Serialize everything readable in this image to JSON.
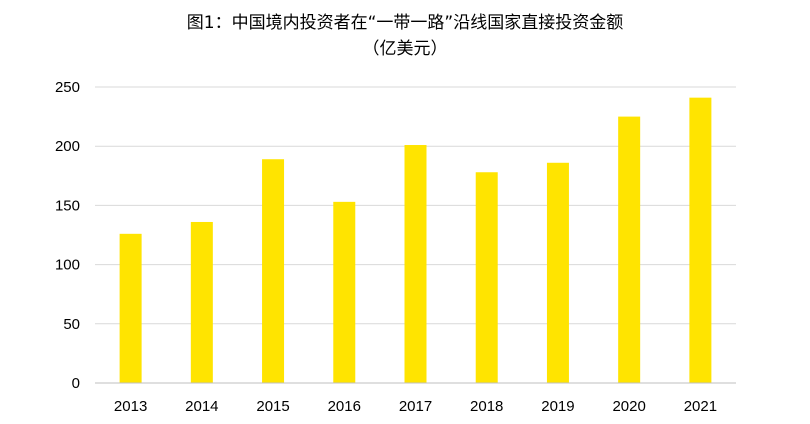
{
  "chart_data": {
    "type": "bar",
    "title": "图1：中国境内投资者在“一带一路”沿线国家直接投资金额",
    "subtitle": "（亿美元）",
    "categories": [
      "2013",
      "2014",
      "2015",
      "2016",
      "2017",
      "2018",
      "2019",
      "2020",
      "2021"
    ],
    "values": [
      126,
      136,
      189,
      153,
      201,
      178,
      186,
      225,
      241
    ],
    "ylim": [
      0,
      250
    ],
    "yticks": [
      0,
      50,
      100,
      150,
      200,
      250
    ],
    "grid": true,
    "bar_color": "#FFE400",
    "grid_color": "#D9D9D9",
    "axis_color": "#BFBFBF",
    "xlabel": "",
    "ylabel": ""
  }
}
